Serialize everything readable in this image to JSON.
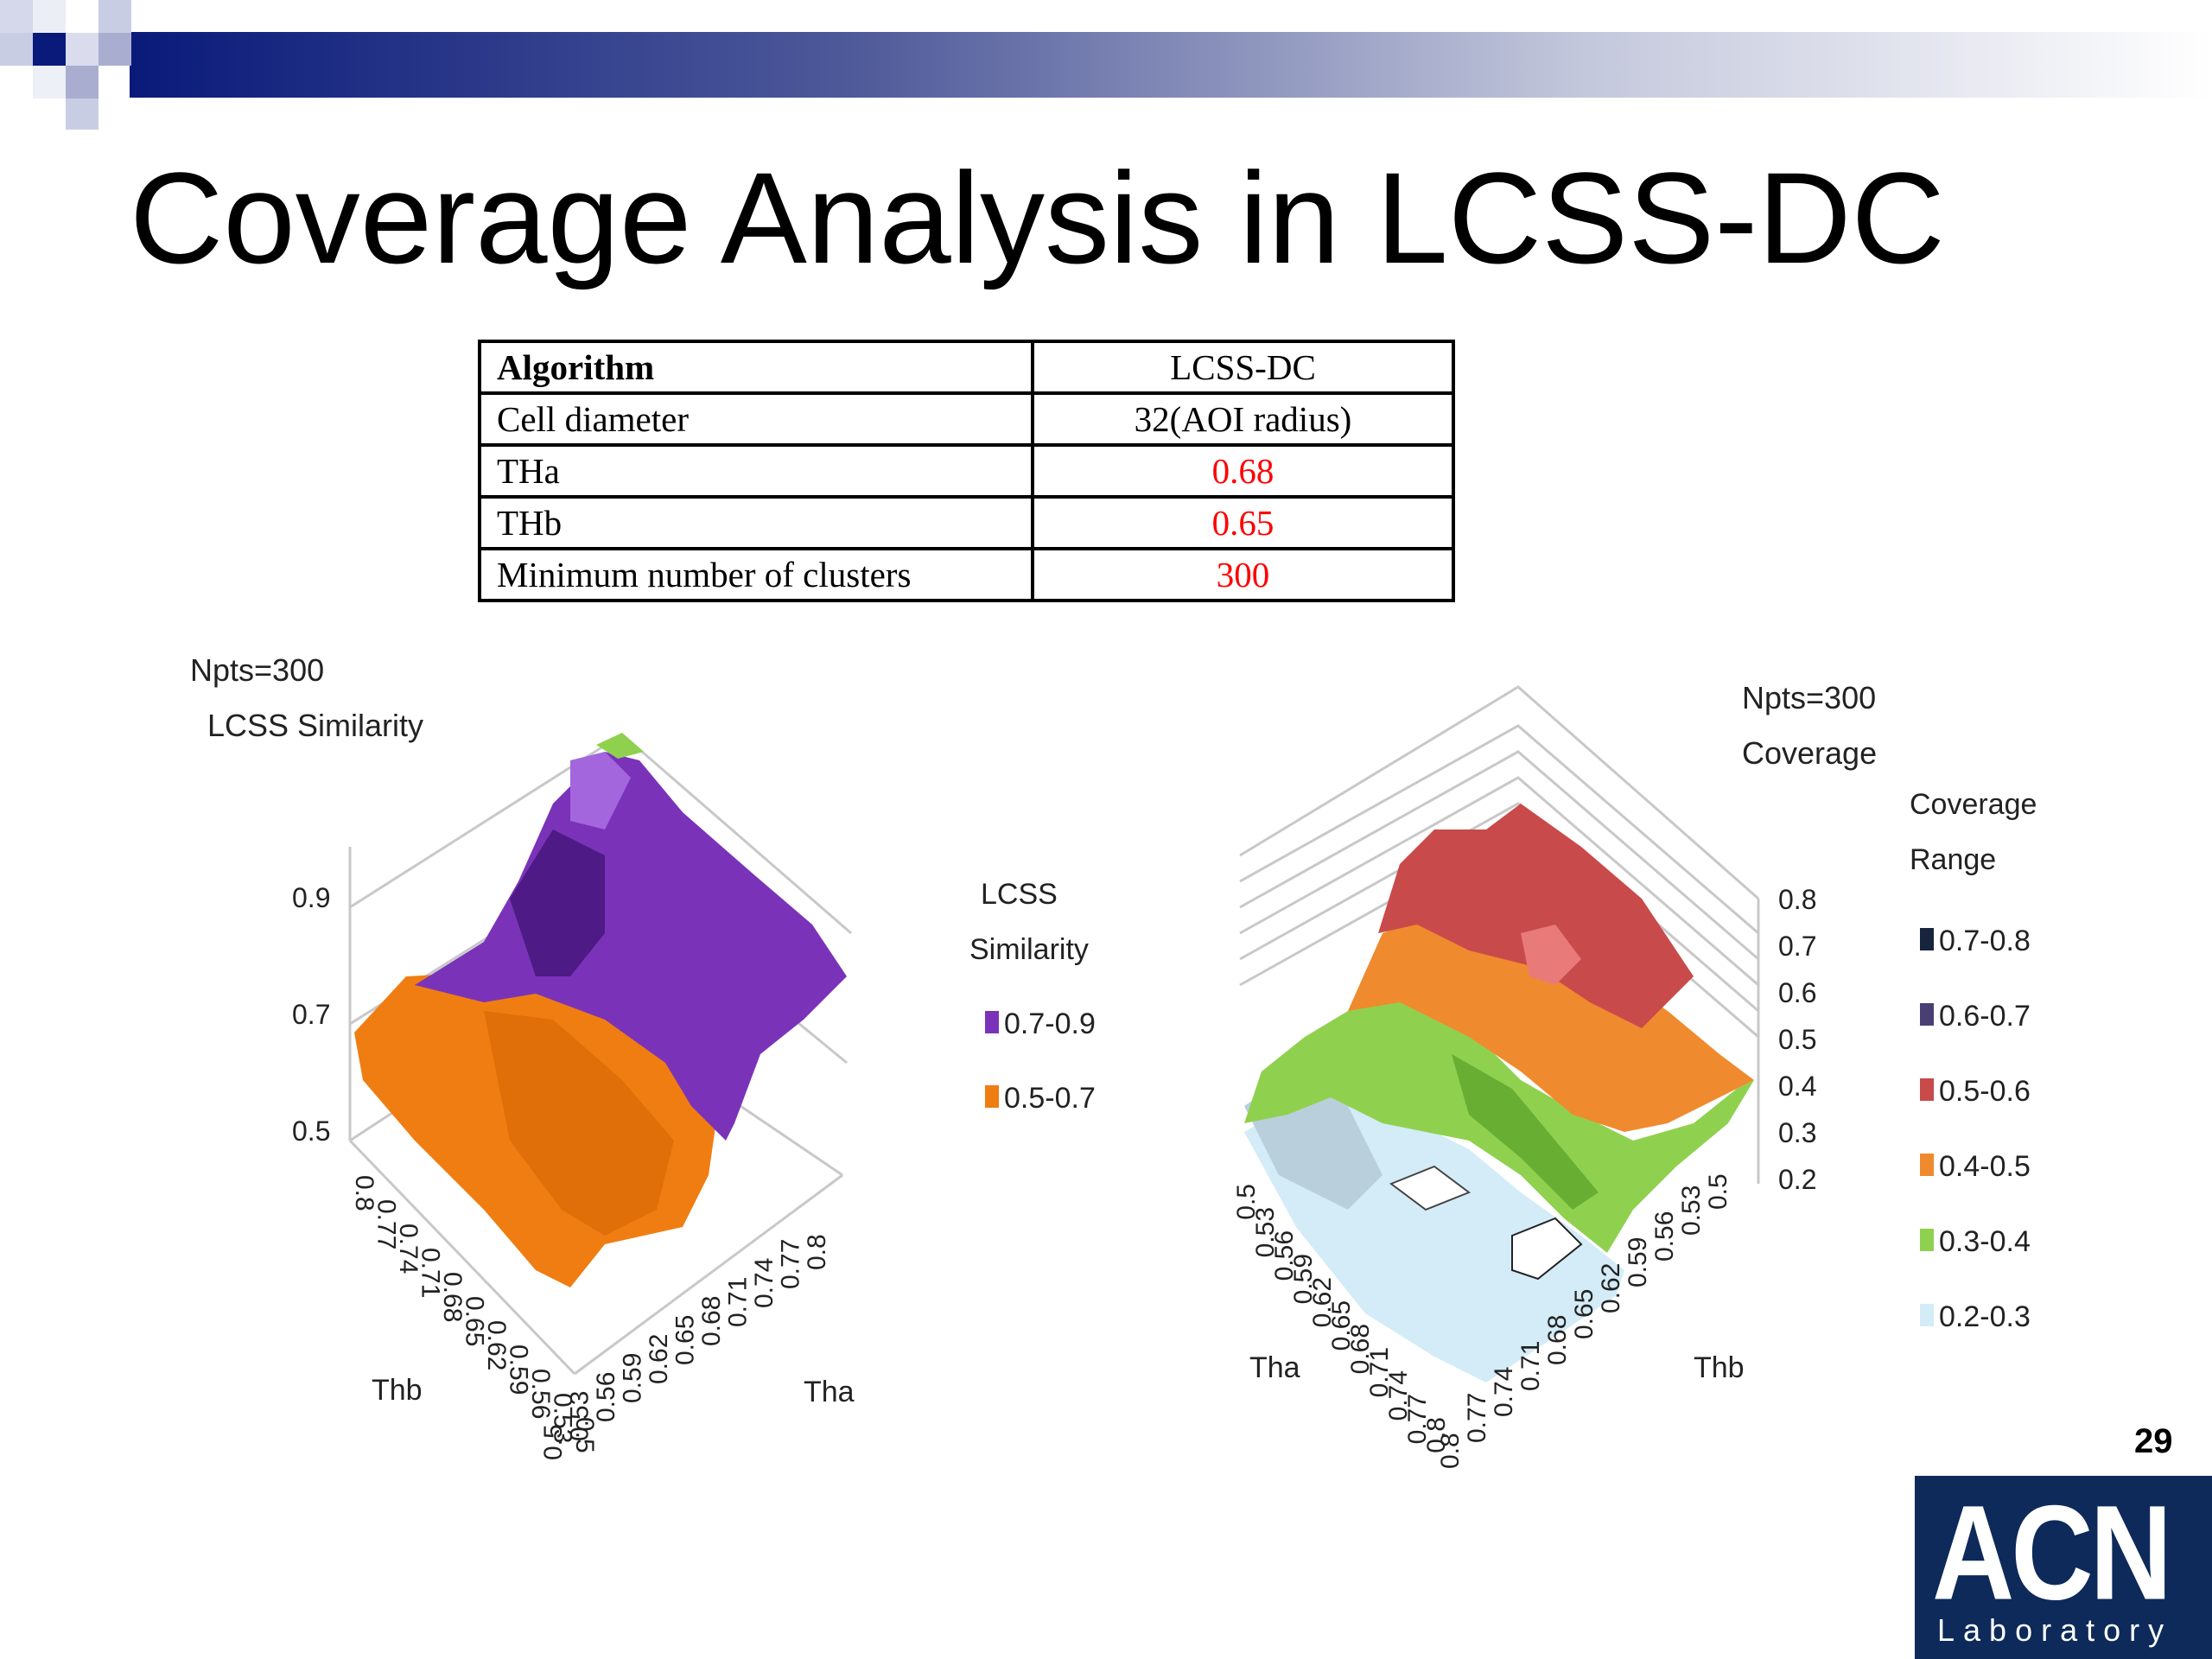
{
  "slide": {
    "title": "Coverage Analysis in LCSS-DC",
    "page_number": "29",
    "logo": {
      "main": "ACN",
      "sub": "Laboratory"
    }
  },
  "table": {
    "rows": [
      {
        "name": "Algorithm",
        "value": "LCSS-DC",
        "header": true
      },
      {
        "name": "Cell diameter",
        "value": "32(AOI radius)"
      },
      {
        "name": "THa",
        "value": "0.68",
        "highlight": true
      },
      {
        "name": "THb",
        "value": "0.65",
        "highlight": true
      },
      {
        "name": "Minimum number of clusters",
        "value": "300",
        "highlight": true
      }
    ],
    "highlight_color": "#ff0000"
  },
  "chart_data": [
    {
      "type": "surface",
      "title": "Npts=300",
      "subtitle": "LCSS Similarity",
      "xlabel": "Tha",
      "ylabel": "Thb",
      "x_ticks": [
        "0.5",
        "0.53",
        "0.56",
        "0.59",
        "0.62",
        "0.65",
        "0.68",
        "0.71",
        "0.74",
        "0.77",
        "0.8"
      ],
      "y_ticks": [
        "0.8",
        "0.77",
        "0.74",
        "0.71",
        "0.68",
        "0.65",
        "0.62",
        "0.59",
        "0.56",
        "0.53",
        "0.5"
      ],
      "z_ticks": [
        "0.9",
        "0.7",
        "0.5"
      ],
      "zlim": [
        0.5,
        0.9
      ],
      "legend": {
        "title_lines": [
          "LCSS",
          "Similarity"
        ],
        "placement": "right",
        "items": [
          {
            "label": "0.7-0.9",
            "color": "#7a33b8"
          },
          {
            "label": "0.5-0.7",
            "color": "#f07d12"
          }
        ]
      }
    },
    {
      "type": "surface",
      "title": "Npts=300",
      "subtitle": "Coverage",
      "xlabel": "Tha",
      "ylabel": "Thb",
      "x_ticks": [
        "0.5",
        "0.53",
        "0.56",
        "0.59",
        "0.62",
        "0.65",
        "0.68",
        "0.71",
        "0.74",
        "0.77",
        "0.8"
      ],
      "y_ticks": [
        "0.8",
        "0.77",
        "0.74",
        "0.71",
        "0.68",
        "0.65",
        "0.62",
        "0.59",
        "0.56",
        "0.53",
        "0.5"
      ],
      "z_ticks": [
        "0.8",
        "0.7",
        "0.6",
        "0.5",
        "0.4",
        "0.3",
        "0.2"
      ],
      "zlim": [
        0.2,
        0.8
      ],
      "legend": {
        "title_lines": [
          "Coverage",
          "Range"
        ],
        "placement": "right",
        "items": [
          {
            "label": "0.7-0.8",
            "color": "#16243d"
          },
          {
            "label": "0.6-0.7",
            "color": "#4a3f73"
          },
          {
            "label": "0.5-0.6",
            "color": "#c94a4a"
          },
          {
            "label": "0.4-0.5",
            "color": "#f08a2e"
          },
          {
            "label": "0.3-0.4",
            "color": "#8fd14f"
          },
          {
            "label": "0.2-0.3",
            "color": "#d3ecf7"
          }
        ]
      }
    }
  ]
}
